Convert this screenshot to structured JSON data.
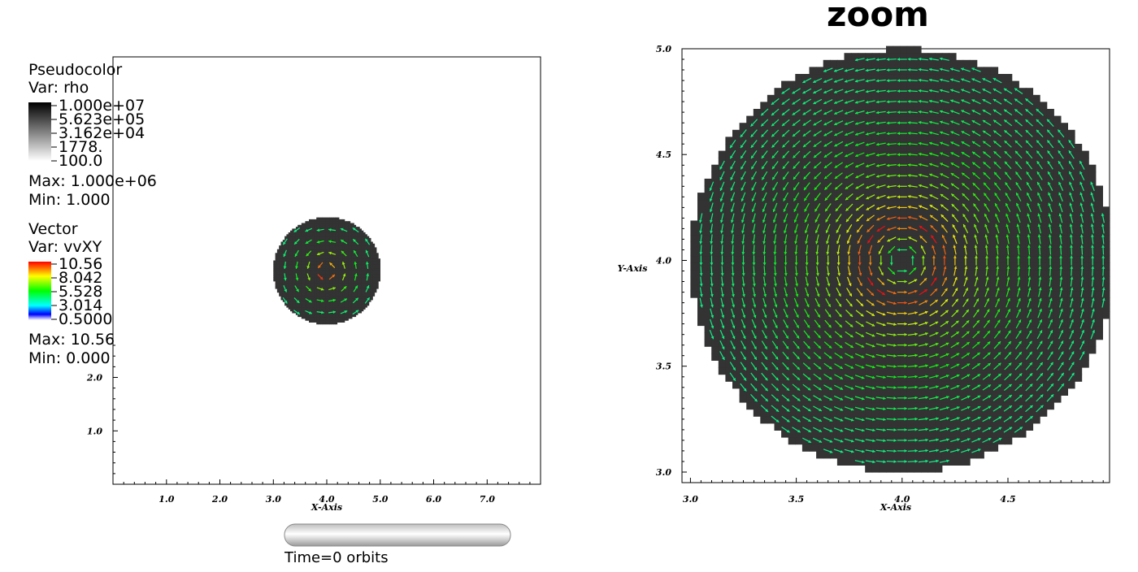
{
  "colors": {
    "disk": "#333333",
    "axis": "#000000",
    "arrow_low": "#1ab8f0",
    "arrow_mid": "#3ad23a",
    "arrow_high": "#e60000"
  },
  "legend_pseudocolor": {
    "title": "Pseudocolor",
    "var": "Var: rho",
    "ticks": [
      "1.000e+07",
      "5.623e+05",
      "3.162e+04",
      "1778.",
      "100.0"
    ],
    "max": "Max:  1.000e+06",
    "min": "Min:  1.000"
  },
  "legend_vector": {
    "title": "Vector",
    "var": "Var: vvXY",
    "ticks": [
      "10.56",
      "8.042",
      "5.528",
      "3.014",
      "0.5000"
    ],
    "max": "Max:  10.56",
    "min": "Min:  0.000"
  },
  "time_slider": {
    "label": "Time=0 orbits",
    "fraction": 0
  },
  "chart_data": [
    {
      "type": "scatter",
      "title": "",
      "xlabel": "X-Axis",
      "ylabel": "",
      "xlim": [
        0,
        8
      ],
      "ylim": [
        0,
        8
      ],
      "xticks": [
        "1.0",
        "2.0",
        "3.0",
        "4.0",
        "5.0",
        "6.0",
        "7.0"
      ],
      "yticks": [
        "1.0",
        "2.0"
      ],
      "disk": {
        "cx": 4.0,
        "cy": 4.0,
        "r": 1.0
      },
      "field": "vortex around (4.0, 4.0), speed peak near center",
      "vector_max": 10.56
    },
    {
      "type": "scatter",
      "title": "zoom",
      "xlabel": "X-Axis",
      "ylabel": "Y-Axis",
      "xlim": [
        2.96,
        4.98
      ],
      "ylim": [
        2.95,
        5.0
      ],
      "xticks": [
        "3.0",
        "3.5",
        "4.0",
        "4.5"
      ],
      "yticks": [
        "3.0",
        "3.5",
        "4.0",
        "4.5",
        "5.0"
      ],
      "disk": {
        "cx": 4.0,
        "cy": 4.0,
        "r": 1.0
      },
      "field": "vortex around (4.0, 4.0), speed peak near center",
      "vector_max": 10.56
    }
  ]
}
